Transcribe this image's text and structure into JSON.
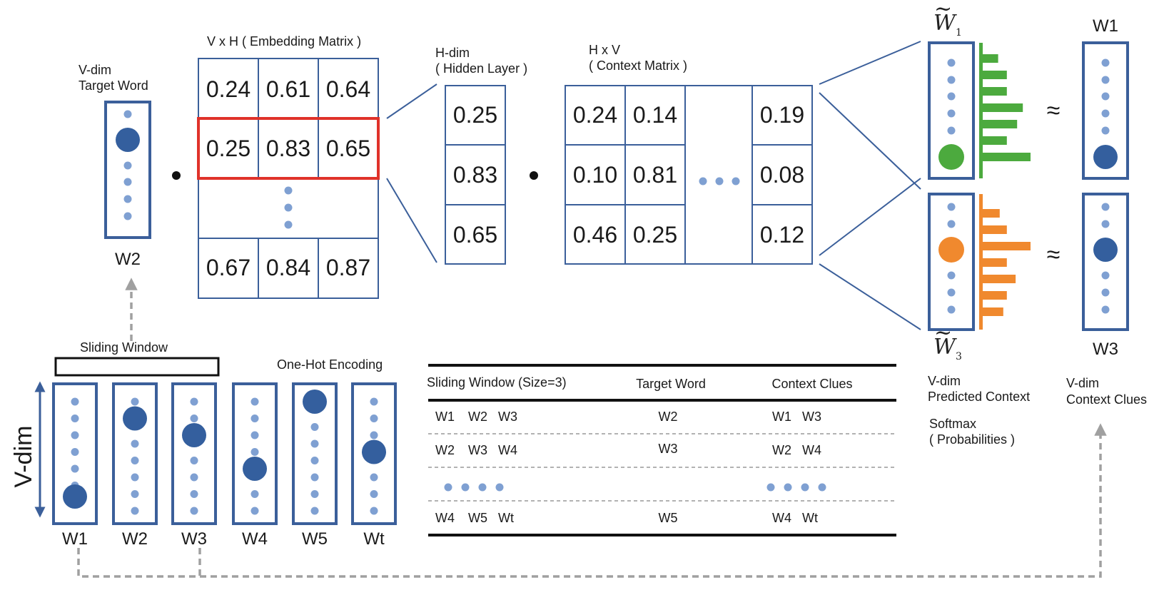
{
  "colors": {
    "box_stroke": "#3b5f9a",
    "dot_small": "#7fa0d2",
    "dot_big": "#345f9e",
    "highlight": "#e0322a",
    "green": "#4caa3e",
    "orange": "#f0892e",
    "dash": "#a0a0a0"
  },
  "target": {
    "title_line1": "V-dim",
    "title_line2": "Target Word",
    "word": "W2"
  },
  "embedding": {
    "title": "V x H ( Embedding Matrix )",
    "rows": [
      [
        "0.24",
        "0.61",
        "0.64"
      ],
      [
        "0.25",
        "0.83",
        "0.65"
      ],
      [
        "0.67",
        "0.84",
        "0.87"
      ]
    ]
  },
  "hidden": {
    "title_line1": "H-dim",
    "title_line2": "( Hidden Layer )",
    "values": [
      "0.25",
      "0.83",
      "0.65"
    ]
  },
  "context_matrix": {
    "title_line1": "H x V",
    "title_line2": "( Context Matrix )",
    "rows": [
      [
        "0.24",
        "0.14",
        "0.19"
      ],
      [
        "0.10",
        "0.81",
        "0.08"
      ],
      [
        "0.46",
        "0.25",
        "0.12"
      ]
    ]
  },
  "predicted": {
    "w1_symbol": "W",
    "w1_sub": "1",
    "w3_symbol": "W",
    "w3_sub": "3",
    "caption_line1": "V-dim",
    "caption_line2": "Predicted Context",
    "softmax_line1": "Softmax",
    "softmax_line2": "( Probabilities )",
    "green_bars": [
      0.3,
      0.47,
      0.47,
      0.78,
      0.67,
      0.47,
      0.93
    ],
    "orange_bars": [
      0.33,
      0.47,
      0.93,
      0.47,
      0.64,
      0.47,
      0.4
    ],
    "approx": "≈"
  },
  "clues": {
    "w1": "W1",
    "w3": "W3",
    "caption_line1": "V-dim",
    "caption_line2": "Context Clues"
  },
  "onehot": {
    "sliding_label": "Sliding Window",
    "encoding_label": "One-Hot Encoding",
    "axis_label": "V-dim",
    "words": [
      "W1",
      "W2",
      "W3",
      "W4",
      "W5",
      "Wt"
    ]
  },
  "table": {
    "headers": [
      "Sliding Window (Size=3)",
      "Target Word",
      "Context Clues"
    ],
    "rows": [
      {
        "window": [
          "W1",
          "W2",
          "W3"
        ],
        "target": "W2",
        "context": [
          "W1",
          "W3"
        ]
      },
      {
        "window": [
          "W2",
          "W3",
          "W4"
        ],
        "target": "W3",
        "context": [
          "W2",
          "W4"
        ]
      },
      {
        "window": [
          "W4",
          "W5",
          "Wt"
        ],
        "target": "W5",
        "context": [
          "W4",
          "Wt"
        ]
      }
    ]
  }
}
